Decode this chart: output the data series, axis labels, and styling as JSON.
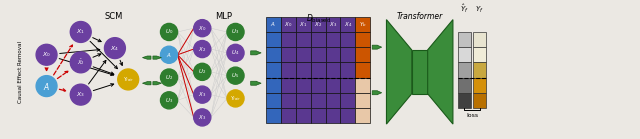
{
  "bg_color": "#ebe8e3",
  "fig_width": 6.4,
  "fig_height": 1.39,
  "scm_title": "SCM",
  "mlp_title": "MLP",
  "transformer_title": "Transformer",
  "loss_label": "loss",
  "causal_label": "Causal Effect Removal",
  "purple": "#6b3fa0",
  "blue": "#4a9fd4",
  "green": "#2e7d2e",
  "yellow": "#d4a800",
  "col_purple": "#5a3890",
  "col_orange": "#cc5500",
  "col_peach": "#e8c8a8",
  "col_blue": "#3366bb",
  "green_arrow": "#3a8c3a",
  "red": "#cc0000",
  "tgreen": "#3a8c3a",
  "yhat_colors": [
    "#c0c0c0",
    "#d8d8d8",
    "#a0a0a0",
    "#707070",
    "#404040"
  ],
  "yf_colors": [
    "#e8e4d0",
    "#f0ecd8",
    "#c8a840",
    "#d4900a",
    "#b87000"
  ]
}
